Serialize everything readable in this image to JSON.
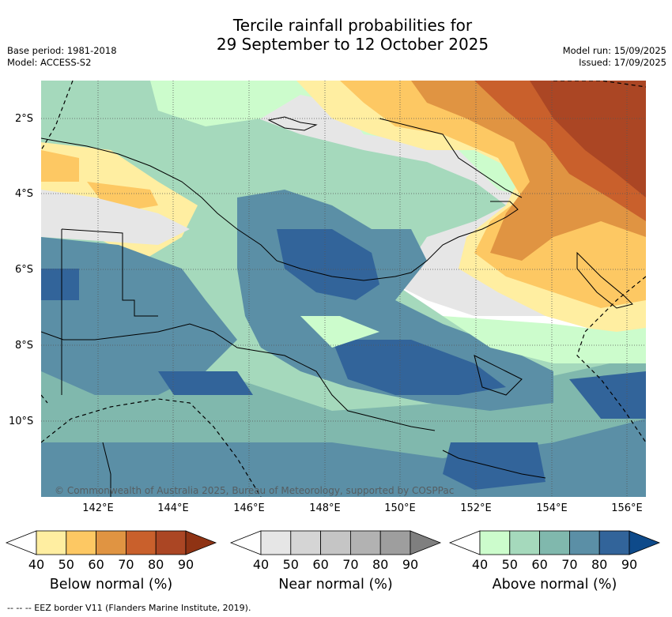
{
  "header": {
    "title_line1": "Tercile rainfall probabilities for",
    "title_line2": "29 September to 12 October 2025",
    "base_period": "Base period: 1981-2018",
    "model": "Model: ACCESS-S2",
    "model_run": "Model run: 15/09/2025",
    "issued": "Issued: 17/09/2025"
  },
  "axes": {
    "lat_labels": [
      "2°S",
      "4°S",
      "6°S",
      "8°S",
      "10°S"
    ],
    "lon_labels": [
      "142°E",
      "144°E",
      "146°E",
      "148°E",
      "150°E",
      "152°E",
      "154°E",
      "156°E"
    ]
  },
  "copyright": "© Commonwealth of Australia 2025, Bureau of Meteorology, supported by COSPPac",
  "legends": [
    {
      "title": "Below normal (%)",
      "ticks": [
        "40",
        "50",
        "60",
        "70",
        "80",
        "90"
      ],
      "colors": [
        "#ffeea1",
        "#fdc863",
        "#e09442",
        "#c9602c",
        "#ab4624",
        "#8f3314"
      ]
    },
    {
      "title": "Near normal (%)",
      "ticks": [
        "40",
        "50",
        "60",
        "70",
        "80",
        "90"
      ],
      "colors": [
        "#e6e6e6",
        "#d5d5d5",
        "#c5c5c5",
        "#b2b2b2",
        "#9e9e9e",
        "#7f7f7f"
      ]
    },
    {
      "title": "Above normal (%)",
      "ticks": [
        "40",
        "50",
        "60",
        "70",
        "80",
        "90"
      ],
      "colors": [
        "#ccfccc",
        "#a5d9bc",
        "#80b8ad",
        "#5b8fa6",
        "#32649a",
        "#0e4a8a"
      ]
    }
  ],
  "footer": "--  --  -- EEZ border V11 (Flanders Marine Institute, 2019)."
}
